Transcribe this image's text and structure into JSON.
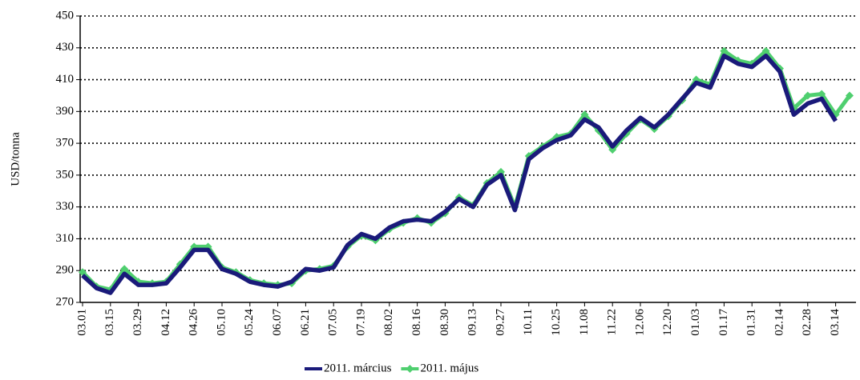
{
  "chart_data": {
    "type": "line",
    "y_label": "USD/tonna",
    "categories": [
      "03.01",
      null,
      "03.15",
      null,
      "03.29",
      null,
      "04.12",
      null,
      "04.26",
      null,
      "05.10",
      null,
      "05.24",
      null,
      "06.07",
      null,
      "06.21",
      null,
      "07.05",
      null,
      "07.19",
      null,
      "08.02",
      null,
      "08.16",
      null,
      "08.30",
      null,
      "09.13",
      null,
      "09.27",
      null,
      "10.11",
      null,
      "10.25",
      null,
      "11.08",
      null,
      "11.22",
      null,
      "12.06",
      null,
      "12.20",
      null,
      "01.03",
      null,
      "01.17",
      null,
      "01.31",
      null,
      "02.14",
      null,
      "02.28",
      null,
      "03.14",
      null
    ],
    "series": [
      {
        "name": "2011. március",
        "color": "#1a1a7a",
        "marker": "none",
        "values": [
          287,
          279,
          276,
          288,
          281,
          281,
          282,
          292,
          303,
          303,
          291,
          288,
          283,
          281,
          280,
          283,
          291,
          290,
          292,
          306,
          313,
          310,
          317,
          321,
          322,
          321,
          327,
          335,
          330,
          344,
          350,
          328,
          360,
          367,
          372,
          375,
          385,
          380,
          368,
          378,
          386,
          380,
          388,
          398,
          408,
          405,
          425,
          420,
          418,
          425,
          415,
          388,
          395,
          398,
          384,
          null
        ]
      },
      {
        "name": "2011. május",
        "color": "#4fcf6f",
        "marker": "diamond",
        "values": [
          289,
          280,
          278,
          291,
          283,
          282,
          283,
          294,
          305,
          305,
          292,
          289,
          284,
          282,
          281,
          282,
          290,
          291,
          293,
          305,
          312,
          309,
          316,
          320,
          323,
          320,
          326,
          336,
          331,
          345,
          352,
          330,
          362,
          368,
          374,
          376,
          388,
          378,
          366,
          376,
          385,
          379,
          387,
          397,
          410,
          407,
          428,
          422,
          420,
          428,
          417,
          392,
          400,
          401,
          388,
          400
        ]
      }
    ],
    "ylim": [
      270,
      450
    ],
    "yticks": [
      270,
      290,
      310,
      330,
      350,
      370,
      390,
      410,
      430,
      450
    ],
    "grid": true,
    "legend": "bottom"
  }
}
